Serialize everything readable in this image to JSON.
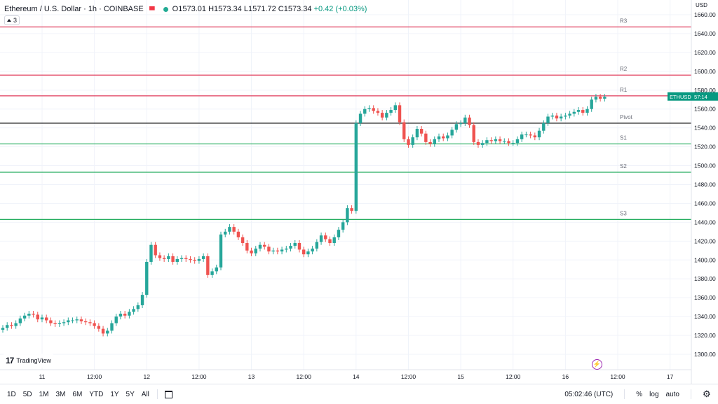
{
  "header": {
    "title": "Ethereum / U.S. Dollar · 1h · COINBASE",
    "open": "O1573.01",
    "high": "H1573.34",
    "low": "L1571.72",
    "close": "C1573.34",
    "change": "+0.42 (+0.03%)",
    "indicator_count": "3"
  },
  "axis": {
    "currency": "USD",
    "last_label": "ETHUSD",
    "countdown": "57:14",
    "last_color": "#089981"
  },
  "footer": {
    "timeframes": [
      "1D",
      "5D",
      "1M",
      "3M",
      "6M",
      "YTD",
      "1Y",
      "5Y",
      "All"
    ],
    "clock": "05:02:46 (UTC)",
    "percent": "%",
    "log": "log",
    "auto": "auto"
  },
  "logo": {
    "text": "TradingView"
  },
  "colors": {
    "up": "#26a69a",
    "down": "#ef5350",
    "resistance": "#e03a5a",
    "support": "#27ae60",
    "pivot": "#000000"
  },
  "chart_data": {
    "type": "candlestick",
    "symbol": "ETHUSD",
    "ylim": [
      1290,
      1670
    ],
    "y_ticks": [
      1300,
      1320,
      1340,
      1360,
      1380,
      1400,
      1420,
      1440,
      1460,
      1480,
      1500,
      1520,
      1540,
      1560,
      1580,
      1600,
      1620,
      1640,
      1660
    ],
    "x_ticks": [
      "11",
      "12:00",
      "12",
      "12:00",
      "13",
      "12:00",
      "14",
      "12:00",
      "15",
      "12:00",
      "16",
      "12:00",
      "17"
    ],
    "x_tick_index": [
      9,
      21,
      33,
      45,
      57,
      69,
      81,
      93,
      105,
      117,
      129,
      141,
      153
    ],
    "levels": [
      {
        "name": "R3",
        "value": 1647,
        "kind": "resistance"
      },
      {
        "name": "R2",
        "value": 1596,
        "kind": "resistance"
      },
      {
        "name": "R1",
        "value": 1574,
        "kind": "resistance"
      },
      {
        "name": "Pivot",
        "value": 1545,
        "kind": "pivot"
      },
      {
        "name": "S1",
        "value": 1523,
        "kind": "support"
      },
      {
        "name": "S2",
        "value": 1493,
        "kind": "support"
      },
      {
        "name": "S3",
        "value": 1443,
        "kind": "support"
      }
    ],
    "closes": [
      1328,
      1331,
      1330,
      1333,
      1338,
      1341,
      1343,
      1342,
      1337,
      1339,
      1336,
      1333,
      1332,
      1333,
      1334,
      1336,
      1336,
      1337,
      1335,
      1334,
      1333,
      1330,
      1327,
      1322,
      1325,
      1333,
      1340,
      1343,
      1341,
      1345,
      1348,
      1352,
      1363,
      1398,
      1416,
      1405,
      1402,
      1401,
      1404,
      1398,
      1401,
      1402,
      1401,
      1400,
      1399,
      1401,
      1404,
      1384,
      1388,
      1392,
      1427,
      1430,
      1435,
      1430,
      1424,
      1418,
      1410,
      1407,
      1412,
      1416,
      1414,
      1409,
      1410,
      1409,
      1411,
      1412,
      1415,
      1418,
      1411,
      1406,
      1409,
      1412,
      1419,
      1426,
      1422,
      1418,
      1424,
      1432,
      1440,
      1455,
      1452,
      1545,
      1555,
      1560,
      1561,
      1558,
      1556,
      1551,
      1556,
      1559,
      1564,
      1546,
      1528,
      1522,
      1530,
      1539,
      1534,
      1525,
      1523,
      1528,
      1531,
      1529,
      1532,
      1538,
      1544,
      1545,
      1551,
      1543,
      1525,
      1522,
      1524,
      1527,
      1526,
      1528,
      1526,
      1526,
      1524,
      1524,
      1528,
      1533,
      1533,
      1532,
      1530,
      1537,
      1545,
      1552,
      1553,
      1550,
      1552,
      1553,
      1555,
      1557,
      1559,
      1556,
      1560,
      1570,
      1573,
      1571,
      1573
    ],
    "last": 1573.34
  }
}
